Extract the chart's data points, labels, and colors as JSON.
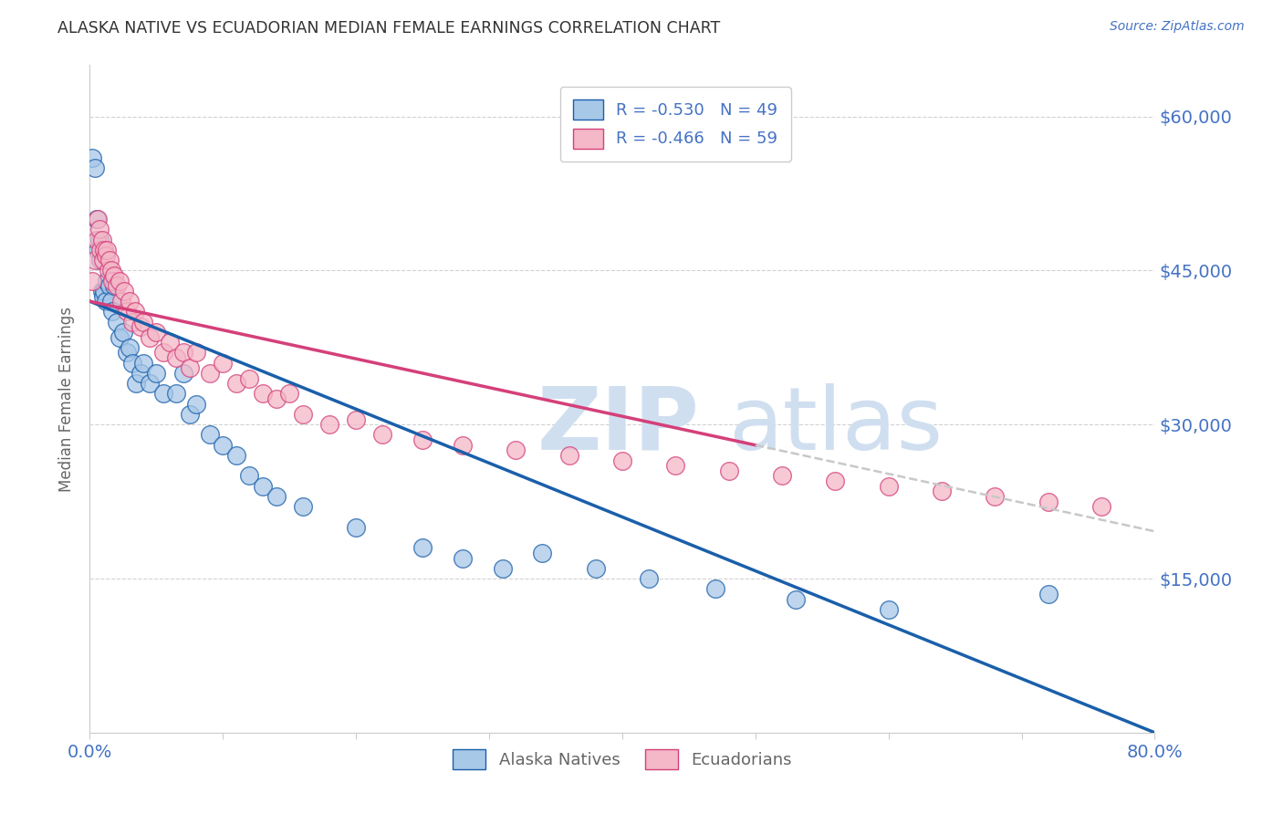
{
  "title": "ALASKA NATIVE VS ECUADORIAN MEDIAN FEMALE EARNINGS CORRELATION CHART",
  "source": "Source: ZipAtlas.com",
  "ylabel": "Median Female Earnings",
  "xlim": [
    0.0,
    0.8
  ],
  "ylim": [
    0,
    65000
  ],
  "yticks": [
    0,
    15000,
    30000,
    45000,
    60000
  ],
  "ytick_labels_right": [
    "",
    "$15,000",
    "$30,000",
    "$45,000",
    "$60,000"
  ],
  "xticks": [
    0.0,
    0.1,
    0.2,
    0.3,
    0.4,
    0.5,
    0.6,
    0.7,
    0.8
  ],
  "xtick_labels": [
    "0.0%",
    "",
    "",
    "",
    "",
    "",
    "",
    "",
    "80.0%"
  ],
  "legend_r_blue": "R = -0.530",
  "legend_n_blue": "N = 49",
  "legend_r_pink": "R = -0.466",
  "legend_n_pink": "N = 59",
  "blue_scatter_color": "#a8c8e8",
  "pink_scatter_color": "#f4b8c8",
  "blue_line_color": "#1a5faa",
  "pink_line_color": "#d4407a",
  "dashed_line_color": "#c8c8c8",
  "title_color": "#333333",
  "axis_label_color": "#666666",
  "tick_label_color": "#4472c4",
  "watermark_color": "#d0dff0",
  "background_color": "#ffffff",
  "alaska_x": [
    0.002,
    0.004,
    0.005,
    0.006,
    0.007,
    0.008,
    0.009,
    0.01,
    0.011,
    0.012,
    0.013,
    0.015,
    0.016,
    0.017,
    0.018,
    0.02,
    0.022,
    0.025,
    0.028,
    0.03,
    0.032,
    0.035,
    0.038,
    0.04,
    0.045,
    0.05,
    0.055,
    0.065,
    0.07,
    0.075,
    0.08,
    0.09,
    0.1,
    0.11,
    0.12,
    0.13,
    0.14,
    0.16,
    0.2,
    0.25,
    0.28,
    0.31,
    0.34,
    0.38,
    0.42,
    0.47,
    0.53,
    0.6,
    0.72
  ],
  "alaska_y": [
    56000,
    55000,
    50000,
    47000,
    48000,
    46000,
    43000,
    42500,
    43000,
    42000,
    44000,
    43500,
    42000,
    41000,
    43500,
    40000,
    38500,
    39000,
    37000,
    37500,
    36000,
    34000,
    35000,
    36000,
    34000,
    35000,
    33000,
    33000,
    35000,
    31000,
    32000,
    29000,
    28000,
    27000,
    25000,
    24000,
    23000,
    22000,
    20000,
    18000,
    17000,
    16000,
    17500,
    16000,
    15000,
    14000,
    13000,
    12000,
    13500
  ],
  "ecuador_x": [
    0.002,
    0.004,
    0.005,
    0.006,
    0.007,
    0.008,
    0.009,
    0.01,
    0.011,
    0.012,
    0.013,
    0.014,
    0.015,
    0.016,
    0.017,
    0.018,
    0.02,
    0.022,
    0.024,
    0.026,
    0.028,
    0.03,
    0.032,
    0.034,
    0.038,
    0.04,
    0.045,
    0.05,
    0.055,
    0.06,
    0.065,
    0.07,
    0.075,
    0.08,
    0.09,
    0.1,
    0.11,
    0.12,
    0.13,
    0.14,
    0.15,
    0.16,
    0.18,
    0.2,
    0.22,
    0.25,
    0.28,
    0.32,
    0.36,
    0.4,
    0.44,
    0.48,
    0.52,
    0.56,
    0.6,
    0.64,
    0.68,
    0.72,
    0.76
  ],
  "ecuador_y": [
    44000,
    46000,
    48000,
    50000,
    49000,
    47000,
    48000,
    46000,
    47000,
    46500,
    47000,
    45000,
    46000,
    45000,
    44000,
    44500,
    43500,
    44000,
    42000,
    43000,
    41000,
    42000,
    40000,
    41000,
    39500,
    40000,
    38500,
    39000,
    37000,
    38000,
    36500,
    37000,
    35500,
    37000,
    35000,
    36000,
    34000,
    34500,
    33000,
    32500,
    33000,
    31000,
    30000,
    30500,
    29000,
    28500,
    28000,
    27500,
    27000,
    26500,
    26000,
    25500,
    25000,
    24500,
    24000,
    23500,
    23000,
    22500,
    22000
  ]
}
